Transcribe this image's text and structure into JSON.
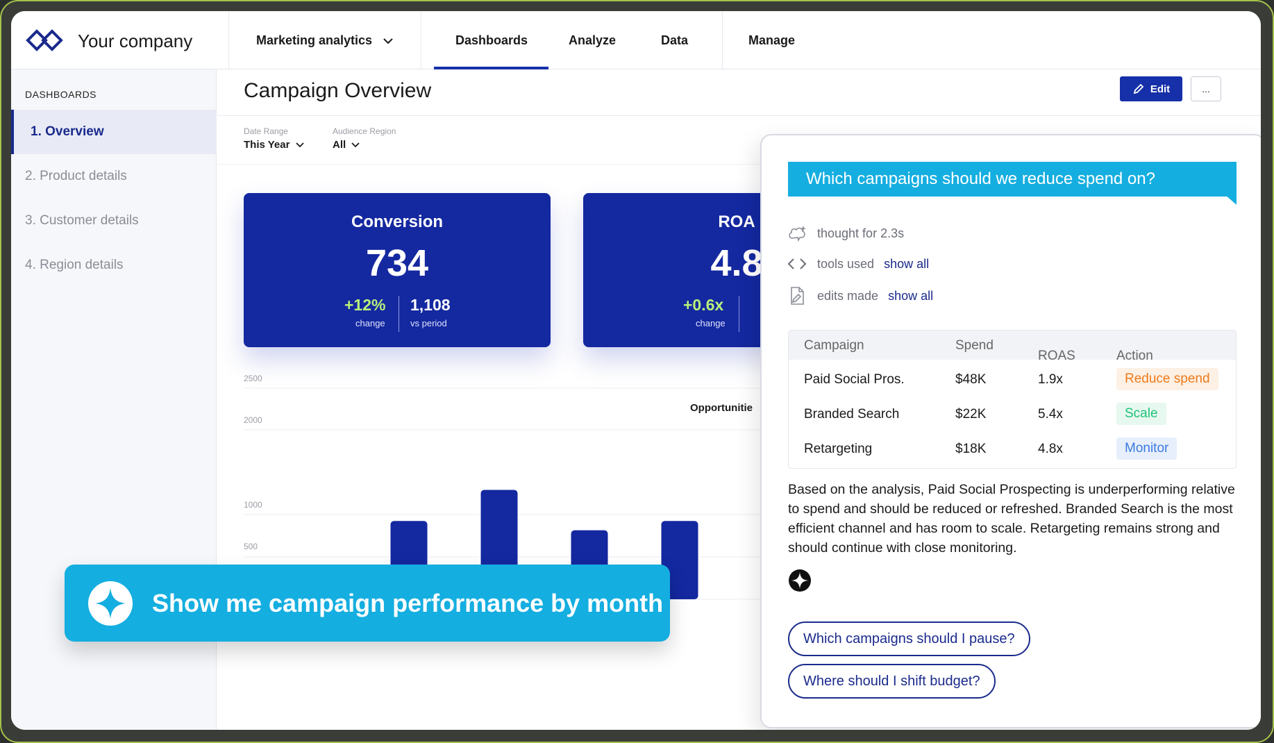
{
  "brand": {
    "company": "Your company",
    "accent": "#1530a8",
    "cyan": "#15aee0"
  },
  "nav": {
    "workspace": "Marketing analytics",
    "items": [
      "Dashboards",
      "Analyze",
      "Data",
      "Manage"
    ],
    "active": "Dashboards"
  },
  "sidebar": {
    "heading": "DASHBOARDS",
    "items": [
      {
        "label": "1. Overview",
        "active": true
      },
      {
        "label": "2. Product details",
        "active": false
      },
      {
        "label": "3. Customer details",
        "active": false
      },
      {
        "label": "4. Region details",
        "active": false
      }
    ]
  },
  "page": {
    "title": "Campaign Overview",
    "edit_label": "Edit",
    "more_label": "..."
  },
  "filters": [
    {
      "label": "Date Range",
      "value": "This Year"
    },
    {
      "label": "Audience Region",
      "value": "All"
    }
  ],
  "kpis": [
    {
      "title": "Conversion",
      "value": "734",
      "change": "+12%",
      "change_label": "change",
      "vs": "1,108",
      "vs_label": "vs period"
    },
    {
      "title": "ROA",
      "value": "4.8",
      "change": "+0.6x",
      "change_label": "change"
    }
  ],
  "chart_data": {
    "type": "bar",
    "title": "Opportunitie",
    "y_ticks": [
      "2500",
      "2000",
      "1000",
      "500",
      "0"
    ],
    "ylim": [
      0,
      2500
    ],
    "values": [
      390,
      930,
      1300,
      820,
      930
    ],
    "color": "#1428a0"
  },
  "prompt": {
    "text": "Show me campaign performance by month"
  },
  "assistant": {
    "question": "Which campaigns should we reduce spend on?",
    "thought": "thought for 2.3s",
    "tools_label": "tools used",
    "tools_link": "show all",
    "edits_label": "edits made",
    "edits_link": "show all",
    "table": {
      "headers": [
        "Campaign",
        "Spend",
        "ROAS",
        "Action"
      ],
      "rows": [
        {
          "campaign": "Paid Social Pros.",
          "spend": "$48K",
          "roas": "1.9x",
          "action": "Reduce spend",
          "action_color": "#f07a1a",
          "action_bg": "#fdf0e4"
        },
        {
          "campaign": "Branded Search",
          "spend": "$22K",
          "roas": "5.4x",
          "action": "Scale",
          "action_color": "#1ec27a",
          "action_bg": "#e6f8ef"
        },
        {
          "campaign": "Retargeting",
          "spend": "$18K",
          "roas": "4.8x",
          "action": "Monitor",
          "action_color": "#3b7ae0",
          "action_bg": "#e7effc"
        }
      ]
    },
    "summary": "Based on the analysis, Paid Social Prospecting is underperforming relative to spend and should be reduced or refreshed. Branded Search is the most efficient channel and has room to scale. Retargeting remains strong and should continue with close monitoring.",
    "suggestions": [
      "Which campaigns should I pause?",
      "Where should I shift budget?"
    ]
  }
}
